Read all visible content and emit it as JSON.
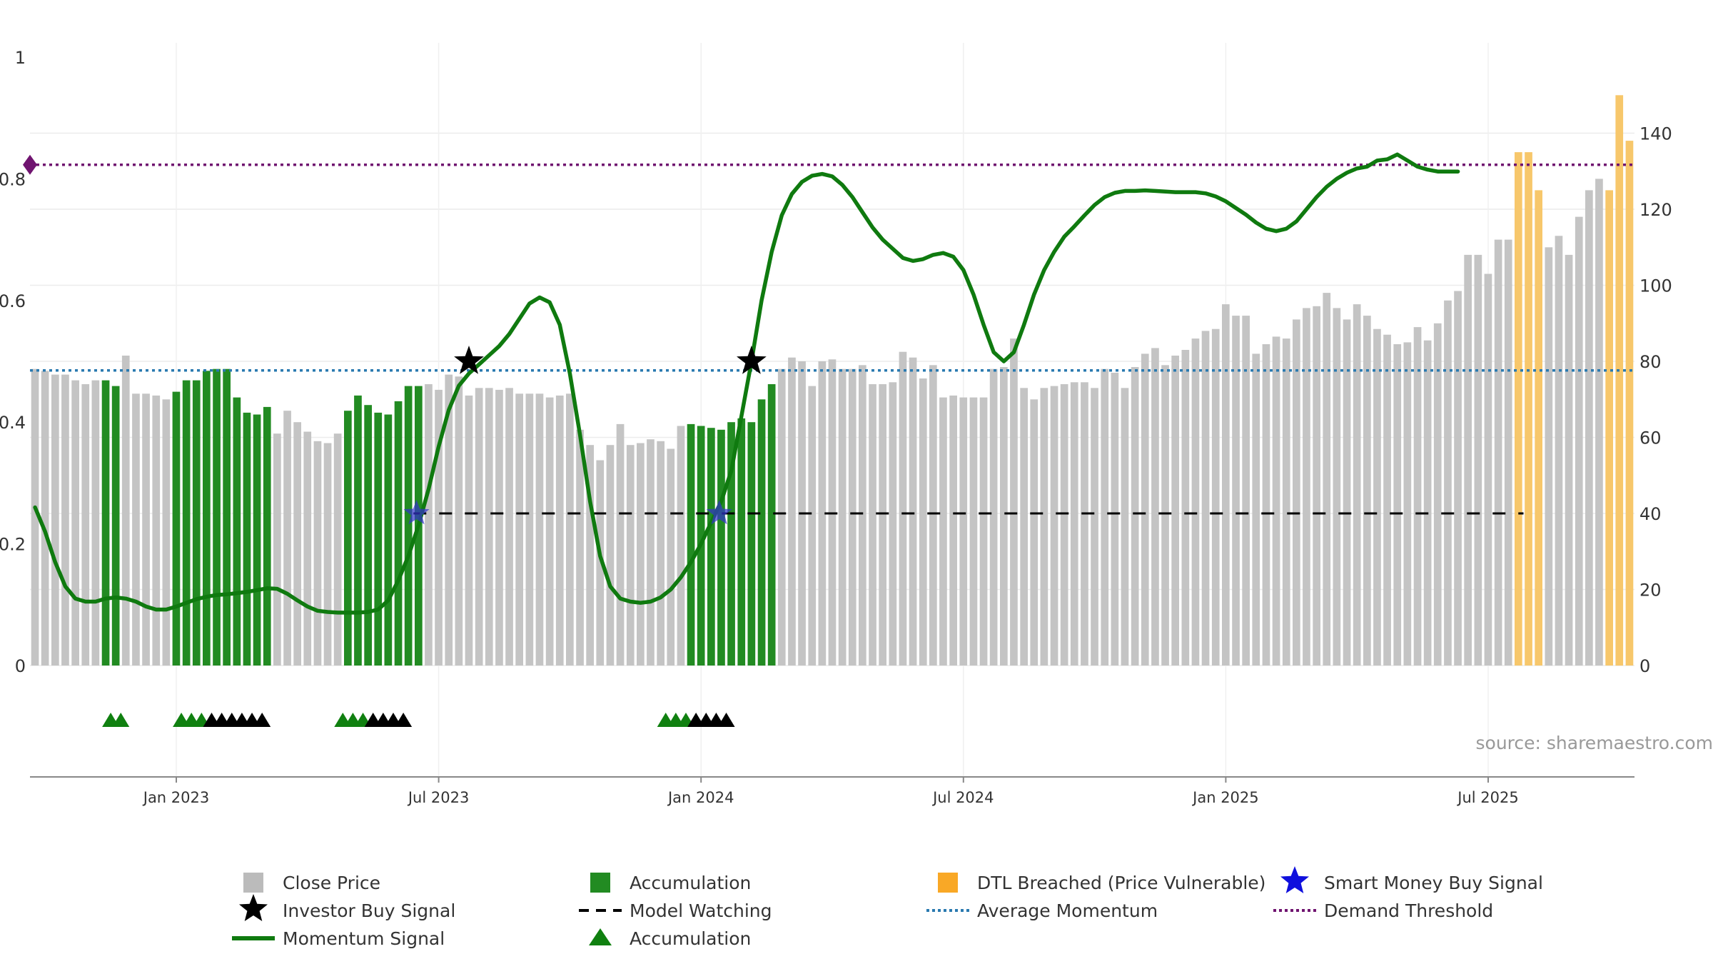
{
  "source": "source: sharemaestro.com",
  "chart_data": {
    "type": "bar",
    "left_axis": {
      "range": [
        0,
        1
      ],
      "ticks": [
        0,
        0.2,
        0.4,
        0.6,
        0.8
      ],
      "tick_labels": [
        "0",
        "0.2",
        "0.4",
        "0.6",
        "0.8"
      ],
      "top_label": "1"
    },
    "right_axis": {
      "range": [
        0,
        160
      ],
      "ticks": [
        0,
        20,
        40,
        60,
        80,
        100,
        120,
        140
      ],
      "tick_labels": [
        "0",
        "20",
        "40",
        "60",
        "80",
        "100",
        "120",
        "140"
      ]
    },
    "x_ticks": [
      {
        "index": 14.5,
        "label": "Jan 2023"
      },
      {
        "index": 40.5,
        "label": "Jul 2023"
      },
      {
        "index": 66.5,
        "label": "Jan 2024"
      },
      {
        "index": 92.5,
        "label": "Jul 2024"
      },
      {
        "index": 118.5,
        "label": "Jan 2025"
      },
      {
        "index": 144.5,
        "label": "Jul 2025"
      }
    ],
    "grid": true,
    "legend_placement": "bottom",
    "colors": {
      "close_price": "#c4c4c4",
      "accumulation": "#228b22",
      "dtl_breached": "#f7c76b",
      "momentum": "#0f7a0f",
      "average_momentum": "#2a7ab0",
      "demand_threshold": "#701470",
      "model_watching": "#000000",
      "smart_money": "#3333cc",
      "investor_signal": "#000000"
    },
    "close_price": {
      "values": [
        78,
        77.5,
        76.5,
        76.5,
        75,
        74,
        75,
        75,
        73.5,
        81.5,
        71.5,
        71.5,
        71,
        70,
        72,
        75,
        75,
        77.5,
        78,
        78,
        70.5,
        66.5,
        66,
        68,
        61,
        67,
        64,
        61.5,
        59,
        58.5,
        61,
        67,
        71,
        68.5,
        66.5,
        66,
        69.5,
        73.5,
        73.5,
        74,
        72.5,
        76.5,
        76,
        71,
        73,
        73,
        72.5,
        73,
        71.5,
        71.5,
        71.5,
        70.5,
        71,
        71.5,
        62,
        58,
        54,
        58,
        63.5,
        58,
        58.5,
        59.5,
        59,
        57,
        63,
        63.5,
        63,
        62.5,
        62,
        64,
        65,
        64,
        70,
        74,
        78,
        81,
        80,
        73.5,
        80,
        80.5,
        78,
        78,
        79,
        74,
        74,
        74.5,
        82.5,
        81,
        75.5,
        79,
        70.5,
        71,
        70.5,
        70.5,
        70.5,
        78,
        78.5,
        86,
        73,
        70,
        73,
        73.5,
        74,
        74.5,
        74.5,
        73,
        78,
        77,
        73,
        78.5,
        82,
        83.5,
        79,
        81.5,
        83,
        86,
        88,
        88.5,
        95,
        92,
        92,
        82,
        84.5,
        86.5,
        86,
        91,
        94,
        94.5,
        98,
        94,
        91,
        95,
        92,
        88.5,
        87,
        84.5,
        85,
        89,
        85.5,
        90,
        96,
        98.5,
        108,
        108,
        103,
        112,
        112,
        135,
        135,
        125,
        110,
        113,
        108,
        118,
        125,
        128,
        125,
        150,
        138
      ],
      "bar_category": [
        0,
        0,
        0,
        0,
        0,
        0,
        0,
        1,
        1,
        0,
        0,
        0,
        0,
        0,
        1,
        1,
        1,
        1,
        1,
        1,
        1,
        1,
        1,
        1,
        0,
        0,
        0,
        0,
        0,
        0,
        0,
        1,
        1,
        1,
        1,
        1,
        1,
        1,
        1,
        0,
        0,
        0,
        0,
        0,
        0,
        0,
        0,
        0,
        0,
        0,
        0,
        0,
        0,
        0,
        0,
        0,
        0,
        0,
        0,
        0,
        0,
        0,
        0,
        0,
        0,
        1,
        1,
        1,
        1,
        1,
        1,
        1,
        1,
        1,
        0,
        0,
        0,
        0,
        0,
        0,
        0,
        0,
        0,
        0,
        0,
        0,
        0,
        0,
        0,
        0,
        0,
        0,
        0,
        0,
        0,
        0,
        0,
        0,
        0,
        0,
        0,
        0,
        0,
        0,
        0,
        0,
        0,
        0,
        0,
        0,
        0,
        0,
        0,
        0,
        0,
        0,
        0,
        0,
        0,
        0,
        0,
        0,
        0,
        0,
        0,
        0,
        0,
        0,
        0,
        0,
        0,
        0,
        0,
        0,
        0,
        0,
        0,
        0,
        0,
        0,
        0,
        0,
        0,
        0,
        0,
        0,
        0,
        2,
        2,
        2,
        0,
        0,
        0,
        0,
        0,
        0,
        2,
        2,
        2,
        2,
        2,
        2
      ]
    },
    "momentum_signal": [
      [
        0,
        0.26
      ],
      [
        1,
        0.22
      ],
      [
        2,
        0.17
      ],
      [
        3,
        0.13
      ],
      [
        4,
        0.11
      ],
      [
        5,
        0.105
      ],
      [
        6,
        0.105
      ],
      [
        7,
        0.11
      ],
      [
        8,
        0.112
      ],
      [
        9,
        0.11
      ],
      [
        10,
        0.105
      ],
      [
        11,
        0.097
      ],
      [
        12,
        0.092
      ],
      [
        13,
        0.092
      ],
      [
        14,
        0.097
      ],
      [
        15,
        0.103
      ],
      [
        16,
        0.109
      ],
      [
        17,
        0.113
      ],
      [
        18,
        0.116
      ],
      [
        19,
        0.117
      ],
      [
        20,
        0.119
      ],
      [
        21,
        0.121
      ],
      [
        22,
        0.124
      ],
      [
        23,
        0.127
      ],
      [
        24,
        0.126
      ],
      [
        25,
        0.118
      ],
      [
        26,
        0.107
      ],
      [
        27,
        0.097
      ],
      [
        28,
        0.09
      ],
      [
        29,
        0.088
      ],
      [
        30,
        0.087
      ],
      [
        31,
        0.087
      ],
      [
        32,
        0.087
      ],
      [
        33,
        0.088
      ],
      [
        34,
        0.092
      ],
      [
        35,
        0.107
      ],
      [
        36,
        0.14
      ],
      [
        37,
        0.18
      ],
      [
        38,
        0.23
      ],
      [
        39,
        0.29
      ],
      [
        40,
        0.36
      ],
      [
        41,
        0.42
      ],
      [
        42,
        0.46
      ],
      [
        43,
        0.48
      ],
      [
        44,
        0.495
      ],
      [
        45,
        0.51
      ],
      [
        46,
        0.525
      ],
      [
        47,
        0.545
      ],
      [
        48,
        0.57
      ],
      [
        49,
        0.595
      ],
      [
        50,
        0.605
      ],
      [
        51,
        0.597
      ],
      [
        52,
        0.56
      ],
      [
        53,
        0.48
      ],
      [
        54,
        0.38
      ],
      [
        55,
        0.27
      ],
      [
        56,
        0.18
      ],
      [
        57,
        0.13
      ],
      [
        58,
        0.11
      ],
      [
        59,
        0.105
      ],
      [
        60,
        0.103
      ],
      [
        61,
        0.105
      ],
      [
        62,
        0.112
      ],
      [
        63,
        0.125
      ],
      [
        64,
        0.145
      ],
      [
        65,
        0.17
      ],
      [
        66,
        0.2
      ],
      [
        67,
        0.235
      ],
      [
        68,
        0.27
      ],
      [
        69,
        0.32
      ],
      [
        70,
        0.41
      ],
      [
        71,
        0.5
      ],
      [
        72,
        0.6
      ],
      [
        73,
        0.68
      ],
      [
        74,
        0.74
      ],
      [
        75,
        0.775
      ],
      [
        76,
        0.795
      ],
      [
        77,
        0.805
      ],
      [
        78,
        0.808
      ],
      [
        79,
        0.804
      ],
      [
        80,
        0.79
      ],
      [
        81,
        0.77
      ],
      [
        82,
        0.745
      ],
      [
        83,
        0.72
      ],
      [
        84,
        0.7
      ],
      [
        85,
        0.685
      ],
      [
        86,
        0.67
      ],
      [
        87,
        0.665
      ],
      [
        88,
        0.668
      ],
      [
        89,
        0.675
      ],
      [
        90,
        0.678
      ],
      [
        91,
        0.672
      ],
      [
        92,
        0.65
      ],
      [
        93,
        0.61
      ],
      [
        94,
        0.56
      ],
      [
        95,
        0.515
      ],
      [
        96,
        0.5
      ],
      [
        97,
        0.515
      ],
      [
        98,
        0.56
      ],
      [
        99,
        0.61
      ],
      [
        100,
        0.65
      ],
      [
        101,
        0.68
      ],
      [
        102,
        0.705
      ],
      [
        103,
        0.722
      ],
      [
        104,
        0.74
      ],
      [
        105,
        0.757
      ],
      [
        106,
        0.77
      ],
      [
        107,
        0.777
      ],
      [
        108,
        0.78
      ],
      [
        109,
        0.78
      ],
      [
        110,
        0.781
      ],
      [
        111,
        0.78
      ],
      [
        112,
        0.779
      ],
      [
        113,
        0.778
      ],
      [
        114,
        0.778
      ],
      [
        115,
        0.778
      ],
      [
        116,
        0.776
      ],
      [
        117,
        0.771
      ],
      [
        118,
        0.763
      ],
      [
        119,
        0.752
      ],
      [
        120,
        0.741
      ],
      [
        121,
        0.728
      ],
      [
        122,
        0.718
      ],
      [
        123,
        0.714
      ],
      [
        124,
        0.718
      ],
      [
        125,
        0.73
      ],
      [
        126,
        0.75
      ],
      [
        127,
        0.77
      ],
      [
        128,
        0.787
      ],
      [
        129,
        0.8
      ],
      [
        130,
        0.81
      ],
      [
        131,
        0.817
      ],
      [
        132,
        0.82
      ],
      [
        133,
        0.83
      ],
      [
        134,
        0.832
      ],
      [
        135,
        0.84
      ],
      [
        136,
        0.83
      ],
      [
        137,
        0.82
      ],
      [
        138,
        0.815
      ],
      [
        139,
        0.812
      ],
      [
        140,
        0.812
      ],
      [
        141,
        0.812
      ]
    ],
    "average_momentum": 0.485,
    "demand_threshold": 0.823,
    "model_watching": {
      "y": 0.25,
      "from_index": 38,
      "to_index": 148
    },
    "investor_buy_signals": [
      {
        "index": 43,
        "y": 0.5
      },
      {
        "index": 71,
        "y": 0.5
      }
    ],
    "smart_money_buy_signals": [
      {
        "index": 37.8,
        "y": 0.25
      },
      {
        "index": 67.8,
        "y": 0.25
      }
    ],
    "accumulation_markers": [
      {
        "index": 7.5,
        "color": "green"
      },
      {
        "index": 8.5,
        "color": "green"
      },
      {
        "index": 14.5,
        "color": "green"
      },
      {
        "index": 15.5,
        "color": "green"
      },
      {
        "index": 16.5,
        "color": "green"
      },
      {
        "index": 17.5,
        "color": "black"
      },
      {
        "index": 18.5,
        "color": "black"
      },
      {
        "index": 19.5,
        "color": "black"
      },
      {
        "index": 20.5,
        "color": "black"
      },
      {
        "index": 21.5,
        "color": "black"
      },
      {
        "index": 22.5,
        "color": "black"
      },
      {
        "index": 30.5,
        "color": "green"
      },
      {
        "index": 31.5,
        "color": "green"
      },
      {
        "index": 32.5,
        "color": "green"
      },
      {
        "index": 33.5,
        "color": "black"
      },
      {
        "index": 34.5,
        "color": "black"
      },
      {
        "index": 35.5,
        "color": "black"
      },
      {
        "index": 36.5,
        "color": "black"
      },
      {
        "index": 62.5,
        "color": "green"
      },
      {
        "index": 63.5,
        "color": "green"
      },
      {
        "index": 64.5,
        "color": "green"
      },
      {
        "index": 65.5,
        "color": "black"
      },
      {
        "index": 66.5,
        "color": "black"
      },
      {
        "index": 67.5,
        "color": "black"
      },
      {
        "index": 68.5,
        "color": "black"
      }
    ],
    "legend": [
      {
        "label": "Close Price",
        "symbol": "square",
        "color": "#bbbbbb"
      },
      {
        "label": "Accumulation",
        "symbol": "square",
        "color": "#228b22"
      },
      {
        "label": "DTL Breached (Price Vulnerable)",
        "symbol": "square",
        "color": "#f9a826"
      },
      {
        "label": "Smart Money Buy Signal",
        "symbol": "star",
        "color": "#1010dd"
      },
      {
        "label": "Investor Buy Signal",
        "symbol": "star",
        "color": "#000000"
      },
      {
        "label": "Model Watching",
        "symbol": "dash",
        "color": "#000000"
      },
      {
        "label": "Average Momentum",
        "symbol": "dotted",
        "color": "#2a7ab0"
      },
      {
        "label": "Demand Threshold",
        "symbol": "dotted",
        "color": "#701470"
      },
      {
        "label": "Momentum Signal",
        "symbol": "line",
        "color": "#0f7a0f"
      },
      {
        "label": "Accumulation",
        "symbol": "triangle",
        "color": "#108010"
      }
    ]
  }
}
